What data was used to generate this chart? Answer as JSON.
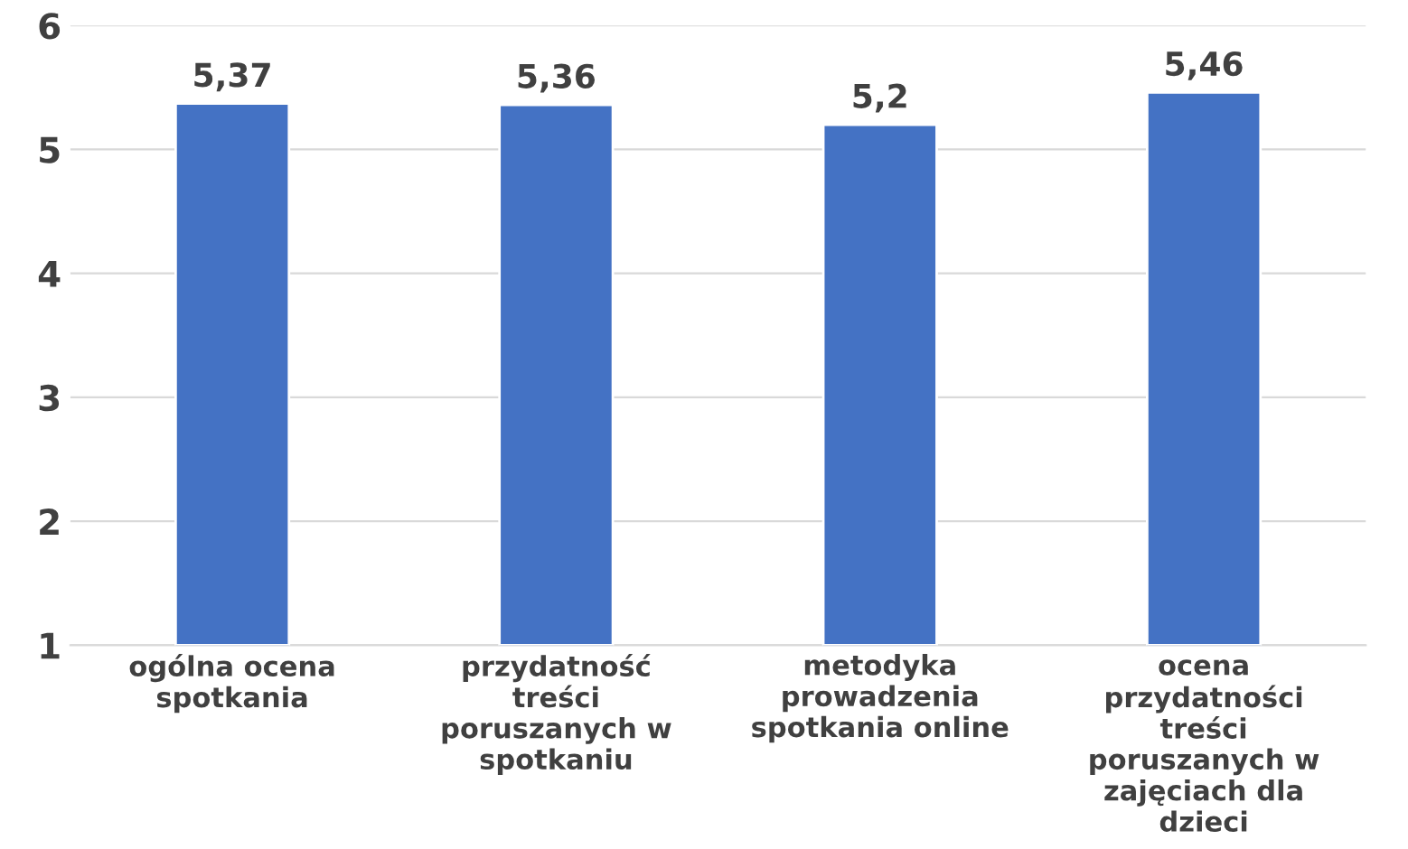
{
  "chart_data": {
    "type": "bar",
    "categories": [
      "ogólna ocena spotkania",
      "przydatność treści poruszanych w spotkaniu",
      "metodyka prowadzenia spotkania online",
      "ocena przydatności treści poruszanych w zajęciach dla dzieci"
    ],
    "values": [
      5.37,
      5.36,
      5.2,
      5.46
    ],
    "value_labels": [
      "5,37",
      "5,36",
      "5,2",
      "5,46"
    ],
    "color": "#4472c4",
    "ylim": [
      1,
      6
    ],
    "yticks": [
      1,
      2,
      3,
      4,
      5,
      6
    ],
    "grid": "y",
    "legend": false
  }
}
